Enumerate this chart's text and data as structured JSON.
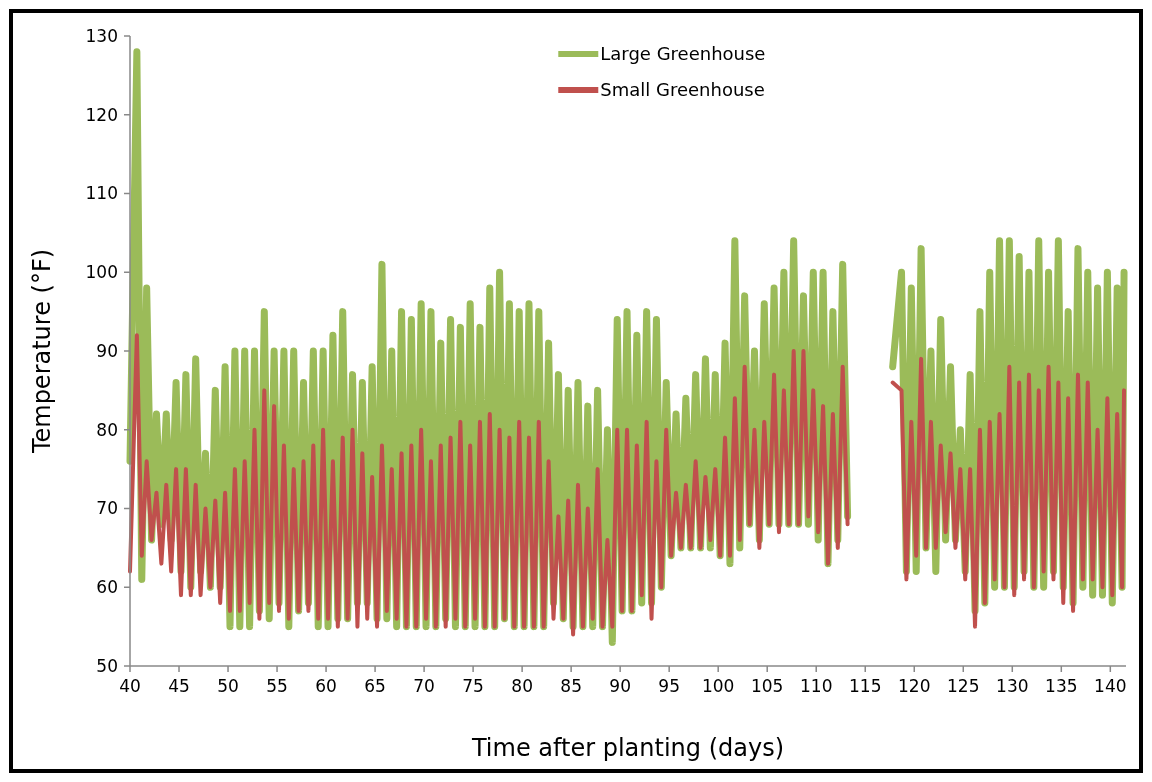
{
  "chart_data": {
    "type": "line",
    "xlabel": "Time after planting (days)",
    "ylabel": "Temperature (°F)",
    "x": [
      40,
      40.7,
      41.2,
      41.7,
      42.2,
      42.7,
      43.2,
      43.7,
      44.2,
      44.7,
      45.2,
      45.7,
      46.2,
      46.7,
      47.2,
      47.7,
      48.2,
      48.7,
      49.2,
      49.7,
      50.2,
      50.7,
      51.2,
      51.7,
      52.2,
      52.7,
      53.2,
      53.7,
      54.2,
      54.7,
      55.2,
      55.7,
      56.2,
      56.7,
      57.2,
      57.7,
      58.2,
      58.7,
      59.2,
      59.7,
      60.2,
      60.7,
      61.2,
      61.7,
      62.2,
      62.7,
      63.2,
      63.7,
      64.2,
      64.7,
      65.2,
      65.7,
      66.2,
      66.7,
      67.2,
      67.7,
      68.2,
      68.7,
      69.2,
      69.7,
      70.2,
      70.7,
      71.2,
      71.7,
      72.2,
      72.7,
      73.2,
      73.7,
      74.2,
      74.7,
      75.2,
      75.7,
      76.2,
      76.7,
      77.2,
      77.7,
      78.2,
      78.7,
      79.2,
      79.7,
      80.2,
      80.7,
      81.2,
      81.7,
      82.2,
      82.7,
      83.2,
      83.7,
      84.2,
      84.7,
      85.2,
      85.7,
      86.2,
      86.7,
      87.2,
      87.7,
      88.2,
      88.7,
      89.2,
      89.7,
      90.2,
      90.7,
      91.2,
      91.7,
      92.2,
      92.7,
      93.2,
      93.7,
      94.2,
      94.7,
      95.2,
      95.7,
      96.2,
      96.7,
      97.2,
      97.7,
      98.2,
      98.7,
      99.2,
      99.7,
      100.2,
      100.7,
      101.2,
      101.7,
      102.2,
      102.7,
      103.2,
      103.7,
      104.2,
      104.7,
      105.2,
      105.7,
      106.2,
      106.7,
      107.2,
      107.7,
      108.2,
      108.7,
      109.2,
      109.7,
      110.2,
      110.7,
      111.2,
      111.7,
      112.2,
      112.7,
      113.2,
      115.5,
      117.8,
      118.7,
      119.2,
      119.7,
      120.2,
      120.7,
      121.2,
      121.7,
      122.2,
      122.7,
      123.2,
      123.7,
      124.2,
      124.7,
      125.2,
      125.7,
      126.2,
      126.7,
      127.2,
      127.7,
      128.2,
      128.7,
      129.2,
      129.7,
      130.2,
      130.7,
      131.2,
      131.7,
      132.2,
      132.7,
      133.2,
      133.7,
      134.2,
      134.7,
      135.2,
      135.7,
      136.2,
      136.7,
      137.2,
      137.7,
      138.2,
      138.7,
      139.2,
      139.7,
      140.2,
      140.7,
      141.2,
      141.4
    ],
    "series": [
      {
        "name": "Large Greenhouse",
        "color": "#9bbb59",
        "values": [
          76,
          128,
          61,
          98,
          66,
          82,
          68,
          82,
          66,
          86,
          62,
          87,
          60,
          89,
          62,
          77,
          60,
          85,
          60,
          88,
          55,
          90,
          55,
          90,
          55,
          90,
          57,
          95,
          56,
          90,
          58,
          90,
          55,
          90,
          57,
          86,
          58,
          90,
          55,
          90,
          55,
          92,
          56,
          95,
          56,
          87,
          58,
          86,
          58,
          88,
          56,
          101,
          56,
          90,
          55,
          95,
          55,
          94,
          55,
          96,
          55,
          95,
          55,
          91,
          56,
          94,
          55,
          93,
          55,
          96,
          55,
          93,
          55,
          98,
          55,
          100,
          56,
          96,
          55,
          95,
          55,
          96,
          55,
          95,
          55,
          91,
          58,
          87,
          56,
          85,
          55,
          86,
          55,
          83,
          55,
          85,
          55,
          80,
          53,
          94,
          57,
          95,
          57,
          92,
          58,
          95,
          58,
          94,
          60,
          86,
          64,
          82,
          65,
          84,
          65,
          87,
          65,
          89,
          65,
          87,
          64,
          91,
          63,
          104,
          65,
          97,
          68,
          90,
          66,
          96,
          68,
          98,
          68,
          100,
          68,
          104,
          68,
          97,
          68,
          100,
          66,
          100,
          63,
          95,
          66,
          101,
          69,
          null,
          88,
          100,
          62,
          98,
          62,
          103,
          65,
          90,
          62,
          94,
          66,
          88,
          66,
          80,
          62,
          87,
          57,
          95,
          58,
          100,
          60,
          104,
          60,
          104,
          60,
          102,
          62,
          100,
          60,
          104,
          60,
          100,
          62,
          104,
          60,
          95,
          58,
          103,
          60,
          100,
          59,
          98,
          59,
          100,
          58,
          98,
          60,
          100
        ]
      },
      {
        "name": "Small Greenhouse",
        "color": "#c0504d",
        "values": [
          62,
          92,
          64,
          76,
          66,
          72,
          63,
          73,
          62,
          75,
          59,
          75,
          59,
          73,
          59,
          70,
          60,
          71,
          58,
          72,
          57,
          75,
          57,
          76,
          58,
          80,
          56,
          85,
          58,
          83,
          57,
          78,
          56,
          75,
          57,
          76,
          57,
          78,
          56,
          80,
          56,
          76,
          55,
          79,
          56,
          80,
          55,
          77,
          56,
          74,
          55,
          78,
          57,
          75,
          56,
          77,
          55,
          78,
          55,
          80,
          56,
          76,
          55,
          78,
          55,
          79,
          56,
          81,
          55,
          78,
          56,
          81,
          55,
          82,
          55,
          80,
          56,
          79,
          55,
          81,
          55,
          79,
          55,
          81,
          55,
          76,
          56,
          69,
          56,
          71,
          54,
          73,
          55,
          70,
          56,
          75,
          55,
          66,
          55,
          80,
          57,
          80,
          57,
          78,
          59,
          81,
          56,
          76,
          60,
          80,
          64,
          72,
          65,
          73,
          65,
          76,
          65,
          74,
          66,
          75,
          64,
          79,
          64,
          84,
          66,
          88,
          68,
          80,
          65,
          81,
          68,
          87,
          67,
          85,
          68,
          90,
          68,
          90,
          69,
          85,
          67,
          83,
          63,
          82,
          65,
          88,
          68,
          null,
          86,
          85,
          61,
          81,
          64,
          89,
          65,
          81,
          65,
          78,
          67,
          77,
          65,
          75,
          61,
          75,
          55,
          80,
          58,
          81,
          61,
          82,
          60,
          88,
          59,
          86,
          61,
          87,
          60,
          85,
          62,
          88,
          61,
          86,
          58,
          84,
          57,
          87,
          61,
          86,
          61,
          80,
          60,
          84,
          59,
          82,
          60,
          85
        ]
      }
    ],
    "xlim": [
      40,
      141.6
    ],
    "xticks": [
      40,
      45,
      50,
      55,
      60,
      65,
      70,
      75,
      80,
      85,
      90,
      95,
      100,
      105,
      110,
      115,
      120,
      125,
      130,
      135,
      140
    ],
    "ylim": [
      50,
      130
    ],
    "yticks": [
      50,
      60,
      70,
      80,
      90,
      100,
      110,
      120,
      130
    ],
    "grid": false,
    "legend": "top",
    "marker": "none",
    "line_style": "solid"
  }
}
